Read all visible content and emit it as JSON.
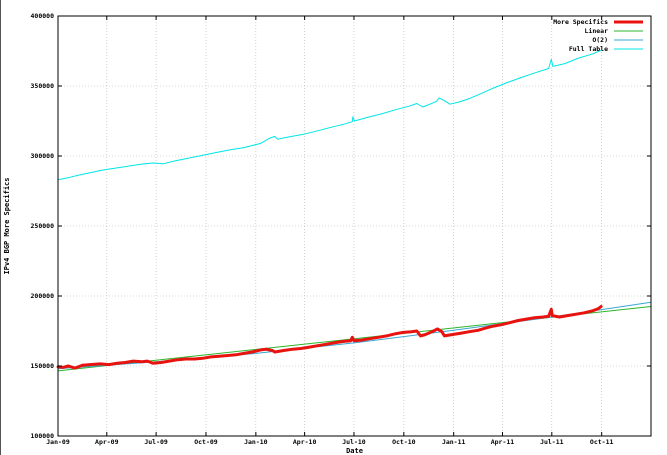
{
  "chart_data": {
    "type": "line",
    "title": "",
    "xlabel": "Date",
    "ylabel": "IPv4 BGP More Specifics",
    "ylim": [
      100000,
      400000
    ],
    "xlim": [
      "2009-01-01",
      "2011-12-31"
    ],
    "grid": true,
    "legend_position": "top-right",
    "y_ticks": [
      "100000",
      "150000",
      "200000",
      "250000",
      "300000",
      "350000",
      "400000"
    ],
    "x_ticks": [
      {
        "date": "2009-01-01",
        "label": "Jan-09"
      },
      {
        "date": "2009-04-01",
        "label": "Apr-09"
      },
      {
        "date": "2009-07-01",
        "label": "Jul-09"
      },
      {
        "date": "2009-10-01",
        "label": "Oct-09"
      },
      {
        "date": "2010-01-01",
        "label": "Jan-10"
      },
      {
        "date": "2010-04-01",
        "label": "Apr-10"
      },
      {
        "date": "2010-07-01",
        "label": "Jul-10"
      },
      {
        "date": "2010-10-01",
        "label": "Oct-10"
      },
      {
        "date": "2011-01-01",
        "label": "Jan-11"
      },
      {
        "date": "2011-04-01",
        "label": "Apr-11"
      },
      {
        "date": "2011-07-01",
        "label": "Jul-11"
      },
      {
        "date": "2011-10-01",
        "label": "Oct-11"
      }
    ],
    "series": [
      {
        "name": "More Specifics",
        "color": "#e8130f",
        "width": 3,
        "points": [
          [
            "2009-01-01",
            149500
          ],
          [
            "2009-01-10",
            149000
          ],
          [
            "2009-01-20",
            150000
          ],
          [
            "2009-02-01",
            148500
          ],
          [
            "2009-02-15",
            150500
          ],
          [
            "2009-03-01",
            151000
          ],
          [
            "2009-03-20",
            151500
          ],
          [
            "2009-04-05",
            151000
          ],
          [
            "2009-04-20",
            152000
          ],
          [
            "2009-05-05",
            152500
          ],
          [
            "2009-05-20",
            153500
          ],
          [
            "2009-06-05",
            153000
          ],
          [
            "2009-06-15",
            153500
          ],
          [
            "2009-06-25",
            152000
          ],
          [
            "2009-07-10",
            152500
          ],
          [
            "2009-07-25",
            153500
          ],
          [
            "2009-08-10",
            154500
          ],
          [
            "2009-08-25",
            155000
          ],
          [
            "2009-09-10",
            155000
          ],
          [
            "2009-09-25",
            155500
          ],
          [
            "2009-10-10",
            156500
          ],
          [
            "2009-10-25",
            157000
          ],
          [
            "2009-11-10",
            157500
          ],
          [
            "2009-11-25",
            158000
          ],
          [
            "2009-12-10",
            159000
          ],
          [
            "2009-12-25",
            160000
          ],
          [
            "2010-01-10",
            161500
          ],
          [
            "2010-01-20",
            162000
          ],
          [
            "2010-02-01",
            161000
          ],
          [
            "2010-02-05",
            160000
          ],
          [
            "2010-02-20",
            161000
          ],
          [
            "2010-03-10",
            162000
          ],
          [
            "2010-03-25",
            162500
          ],
          [
            "2010-04-10",
            163500
          ],
          [
            "2010-04-25",
            164500
          ],
          [
            "2010-05-10",
            165500
          ],
          [
            "2010-05-25",
            166500
          ],
          [
            "2010-06-10",
            167500
          ],
          [
            "2010-06-25",
            168000
          ],
          [
            "2010-06-28",
            170500
          ],
          [
            "2010-07-01",
            168000
          ],
          [
            "2010-07-15",
            168500
          ],
          [
            "2010-07-30",
            169500
          ],
          [
            "2010-08-15",
            170500
          ],
          [
            "2010-08-30",
            171500
          ],
          [
            "2010-09-15",
            173000
          ],
          [
            "2010-09-30",
            174000
          ],
          [
            "2010-10-15",
            174500
          ],
          [
            "2010-10-25",
            175000
          ],
          [
            "2010-11-01",
            171500
          ],
          [
            "2010-11-10",
            172500
          ],
          [
            "2010-11-25",
            175000
          ],
          [
            "2010-12-02",
            176500
          ],
          [
            "2010-12-10",
            174500
          ],
          [
            "2010-12-15",
            171500
          ],
          [
            "2010-12-30",
            172500
          ],
          [
            "2011-01-15",
            173500
          ],
          [
            "2011-01-30",
            174500
          ],
          [
            "2011-02-15",
            175500
          ],
          [
            "2011-02-28",
            177000
          ],
          [
            "2011-03-15",
            178500
          ],
          [
            "2011-03-30",
            179500
          ],
          [
            "2011-04-15",
            181000
          ],
          [
            "2011-04-30",
            182500
          ],
          [
            "2011-05-15",
            183500
          ],
          [
            "2011-05-30",
            184500
          ],
          [
            "2011-06-15",
            185000
          ],
          [
            "2011-06-25",
            185500
          ],
          [
            "2011-06-30",
            190500
          ],
          [
            "2011-07-02",
            186000
          ],
          [
            "2011-07-15",
            185000
          ],
          [
            "2011-07-30",
            186000
          ],
          [
            "2011-08-15",
            187000
          ],
          [
            "2011-08-30",
            188000
          ],
          [
            "2011-09-15",
            189500
          ],
          [
            "2011-09-25",
            191000
          ],
          [
            "2011-09-30",
            192500
          ]
        ]
      },
      {
        "name": "Linear",
        "color": "#2bb52b",
        "width": 1,
        "points": [
          [
            "2009-01-01",
            146500
          ],
          [
            "2011-12-31",
            192500
          ]
        ]
      },
      {
        "name": "O(2)",
        "color": "#3aa6d6",
        "width": 1,
        "points": [
          [
            "2009-01-01",
            148000
          ],
          [
            "2009-07-01",
            153000
          ],
          [
            "2010-01-01",
            159000
          ],
          [
            "2010-07-01",
            166500
          ],
          [
            "2011-01-01",
            175500
          ],
          [
            "2011-07-01",
            185000
          ],
          [
            "2011-12-31",
            195500
          ]
        ]
      },
      {
        "name": "Full Table",
        "color": "#00e5e5",
        "width": 1,
        "points": [
          [
            "2009-01-01",
            283000
          ],
          [
            "2009-01-20",
            284500
          ],
          [
            "2009-02-10",
            286500
          ],
          [
            "2009-03-01",
            288000
          ],
          [
            "2009-03-25",
            290000
          ],
          [
            "2009-04-20",
            291500
          ],
          [
            "2009-05-15",
            293000
          ],
          [
            "2009-06-10",
            294500
          ],
          [
            "2009-06-25",
            295000
          ],
          [
            "2009-07-15",
            294500
          ],
          [
            "2009-08-05",
            296500
          ],
          [
            "2009-08-30",
            298500
          ],
          [
            "2009-09-25",
            300500
          ],
          [
            "2009-10-20",
            302500
          ],
          [
            "2009-11-15",
            304500
          ],
          [
            "2009-12-10",
            306000
          ],
          [
            "2010-01-10",
            309000
          ],
          [
            "2010-01-25",
            312500
          ],
          [
            "2010-02-05",
            314000
          ],
          [
            "2010-02-10",
            312000
          ],
          [
            "2010-03-01",
            313500
          ],
          [
            "2010-03-30",
            315500
          ],
          [
            "2010-04-25",
            318000
          ],
          [
            "2010-05-20",
            320500
          ],
          [
            "2010-06-15",
            323000
          ],
          [
            "2010-06-28",
            324500
          ],
          [
            "2010-06-29",
            328000
          ],
          [
            "2010-07-02",
            325000
          ],
          [
            "2010-07-25",
            327500
          ],
          [
            "2010-08-20",
            330000
          ],
          [
            "2010-09-15",
            333000
          ],
          [
            "2010-10-10",
            335500
          ],
          [
            "2010-10-25",
            337500
          ],
          [
            "2010-11-05",
            335000
          ],
          [
            "2010-11-15",
            336500
          ],
          [
            "2010-11-30",
            339000
          ],
          [
            "2010-12-05",
            341500
          ],
          [
            "2010-12-15",
            339500
          ],
          [
            "2010-12-25",
            337000
          ],
          [
            "2011-01-10",
            338500
          ],
          [
            "2011-01-30",
            341000
          ],
          [
            "2011-02-20",
            344500
          ],
          [
            "2011-03-15",
            348500
          ],
          [
            "2011-04-10",
            352500
          ],
          [
            "2011-05-05",
            356000
          ],
          [
            "2011-06-01",
            359500
          ],
          [
            "2011-06-25",
            362500
          ],
          [
            "2011-06-30",
            369000
          ],
          [
            "2011-07-03",
            364000
          ],
          [
            "2011-07-25",
            366000
          ],
          [
            "2011-08-20",
            370000
          ],
          [
            "2011-09-15",
            373000
          ],
          [
            "2011-09-30",
            375500
          ]
        ]
      }
    ]
  }
}
